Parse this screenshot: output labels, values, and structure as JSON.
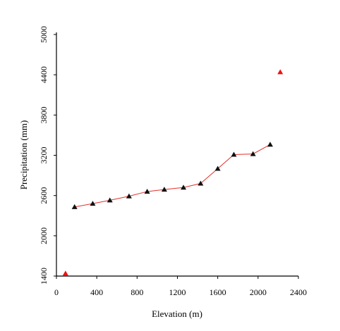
{
  "chart_data": {
    "type": "scatter",
    "xlabel": "Elevation (m)",
    "ylabel": "Precipitation (mm)",
    "xlim": [
      0,
      2400
    ],
    "ylim": [
      1400,
      5000
    ],
    "xticks": [
      "0",
      "400",
      "800",
      "1200",
      "1600",
      "2000",
      "2400"
    ],
    "yticks": [
      "1400",
      "2000",
      "2600",
      "3200",
      "3800",
      "4400",
      "5000"
    ],
    "grid": false,
    "legend": "none",
    "series": [
      {
        "style": "line-with-markers",
        "line_color": "#e0302c",
        "marker_color": "#111111",
        "marker": "triangle",
        "x": [
          180,
          360,
          530,
          720,
          900,
          1070,
          1260,
          1430,
          1600,
          1760,
          1950,
          2120
        ],
        "y": [
          2430,
          2480,
          2530,
          2590,
          2660,
          2690,
          2720,
          2780,
          3000,
          3210,
          3220,
          3360
        ]
      },
      {
        "style": "markers",
        "marker_color": "#ee1111",
        "marker": "triangle",
        "x": [
          90,
          2220
        ],
        "y": [
          1440,
          4440
        ]
      }
    ]
  }
}
